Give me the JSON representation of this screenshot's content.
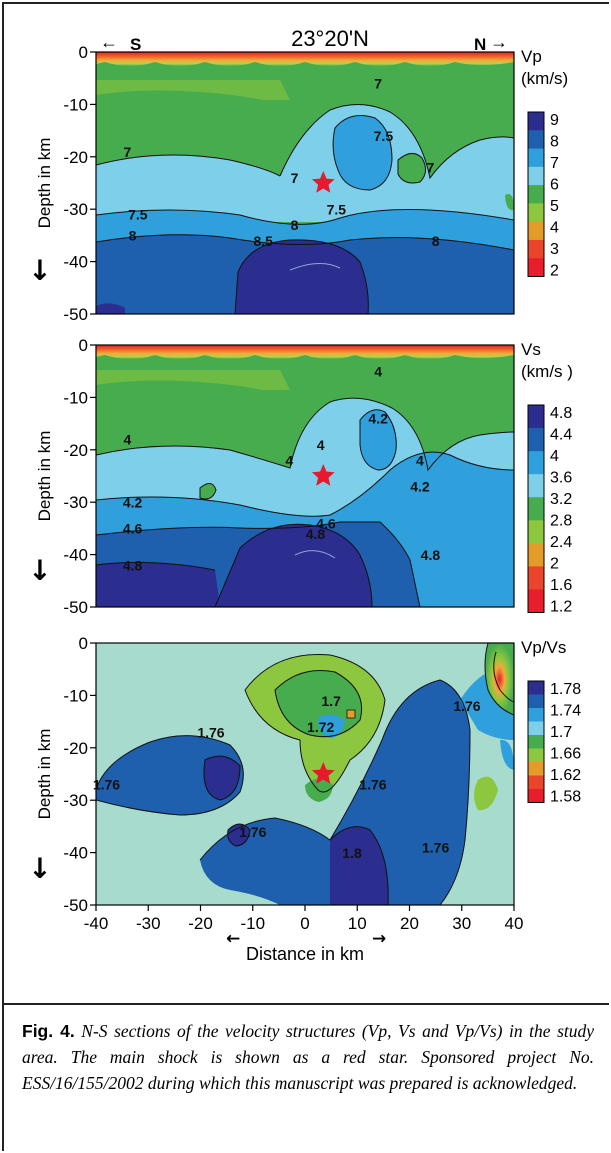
{
  "header": {
    "title": "23°20'N",
    "south_label": "S",
    "north_label": "N"
  },
  "caption": {
    "label": "Fig. 4.",
    "text": "N-S sections of the velocity structures (Vp, Vs and Vp/Vs) in the study area. The main shock is shown as a red star. Sponsored project No. ESS/16/155/2002 during which this manuscript was prepared is acknowledged."
  },
  "chart_data": [
    {
      "type": "heatmap",
      "quantity": "Vp",
      "colorbar_title": [
        "Vp",
        "(km/s)"
      ],
      "colorbar_ticks": [
        "9",
        "8",
        "7",
        "6",
        "5",
        "4",
        "3",
        "2"
      ],
      "colors": [
        "#2b2d8f",
        "#1e5fae",
        "#2fa0dc",
        "#7ecfe9",
        "#47ac4d",
        "#8dc63f",
        "#e39b2a",
        "#e8452b",
        "#e81e2c"
      ],
      "ylabel": "Depth in km",
      "y_ticks": [
        0,
        -10,
        -20,
        -30,
        -40,
        -50
      ],
      "xlim": [
        -40,
        40
      ],
      "ylim": [
        -50,
        0
      ],
      "contour_labels": [
        {
          "text": "7",
          "x": 14,
          "y": -7
        },
        {
          "text": "7.5",
          "x": 15,
          "y": -17
        },
        {
          "text": "7",
          "x": -34,
          "y": -20
        },
        {
          "text": "7",
          "x": 24,
          "y": -23
        },
        {
          "text": "7",
          "x": -2,
          "y": -25
        },
        {
          "text": "7.5",
          "x": -32,
          "y": -32
        },
        {
          "text": "7.5",
          "x": 6,
          "y": -31
        },
        {
          "text": "8",
          "x": -33,
          "y": -36
        },
        {
          "text": "8",
          "x": -2,
          "y": -34
        },
        {
          "text": "8.5",
          "x": -8,
          "y": -37
        },
        {
          "text": "8",
          "x": 25,
          "y": -37
        }
      ],
      "main_shock": {
        "x": 3.5,
        "y": -25
      }
    },
    {
      "type": "heatmap",
      "quantity": "Vs",
      "colorbar_title": [
        "Vs",
        "(km/s )"
      ],
      "colorbar_ticks": [
        "4.8",
        "4.4",
        "4",
        "3.6",
        "3.2",
        "2.8",
        "2.4",
        "2",
        "1.6",
        "1.2"
      ],
      "colors": [
        "#2b2d8f",
        "#1e5fae",
        "#2fa0dc",
        "#7ecfe9",
        "#47ac4d",
        "#8dc63f",
        "#e39b2a",
        "#e8452b",
        "#e81e2c"
      ],
      "ylabel": "Depth in km",
      "y_ticks": [
        0,
        -10,
        -20,
        -30,
        -40,
        -50
      ],
      "xlim": [
        -40,
        40
      ],
      "ylim": [
        -50,
        0
      ],
      "contour_labels": [
        {
          "text": "4",
          "x": 14,
          "y": -6
        },
        {
          "text": "4.2",
          "x": 14,
          "y": -15
        },
        {
          "text": "4",
          "x": -34,
          "y": -19
        },
        {
          "text": "4",
          "x": -3,
          "y": -23
        },
        {
          "text": "4",
          "x": 3,
          "y": -20
        },
        {
          "text": "4",
          "x": 22,
          "y": -23
        },
        {
          "text": "4.2",
          "x": 22,
          "y": -28
        },
        {
          "text": "4.2",
          "x": -33,
          "y": -31
        },
        {
          "text": "4.6",
          "x": -33,
          "y": -36
        },
        {
          "text": "4.6",
          "x": 4,
          "y": -35
        },
        {
          "text": "4.8",
          "x": 2,
          "y": -37
        },
        {
          "text": "4.8",
          "x": -33,
          "y": -43
        },
        {
          "text": "4.8",
          "x": 24,
          "y": -41
        }
      ],
      "main_shock": {
        "x": 3.5,
        "y": -25
      }
    },
    {
      "type": "heatmap",
      "quantity": "Vp/Vs",
      "colorbar_title": [
        "Vp/Vs"
      ],
      "colorbar_ticks": [
        "1.78",
        "1.74",
        "1.7",
        "1.66",
        "1.62",
        "1.58"
      ],
      "colors": [
        "#2b2d8f",
        "#1e5fae",
        "#2fa0dc",
        "#7ecfe9",
        "#47ac4d",
        "#8dc63f",
        "#e39b2a",
        "#e8452b",
        "#e81e2c"
      ],
      "ylabel": "Depth in km",
      "xlabel": "Distance in km",
      "y_ticks": [
        0,
        -10,
        -20,
        -30,
        -40,
        -50
      ],
      "x_ticks": [
        -40,
        -30,
        -20,
        -10,
        0,
        10,
        20,
        30,
        40
      ],
      "xlim": [
        -40,
        40
      ],
      "ylim": [
        -50,
        0
      ],
      "contour_labels": [
        {
          "text": "1.7",
          "x": 5,
          "y": -12
        },
        {
          "text": "1.72",
          "x": 3,
          "y": -17
        },
        {
          "text": "1.76",
          "x": -18,
          "y": -18
        },
        {
          "text": "1.76",
          "x": 31,
          "y": -13
        },
        {
          "text": "1.76",
          "x": -38,
          "y": -28
        },
        {
          "text": "1.76",
          "x": 13,
          "y": -28
        },
        {
          "text": "1.76",
          "x": -10,
          "y": -37
        },
        {
          "text": "1.76",
          "x": 25,
          "y": -40
        },
        {
          "text": "1.8",
          "x": 9,
          "y": -41
        }
      ],
      "main_shock": {
        "x": 3.5,
        "y": -25
      }
    }
  ]
}
